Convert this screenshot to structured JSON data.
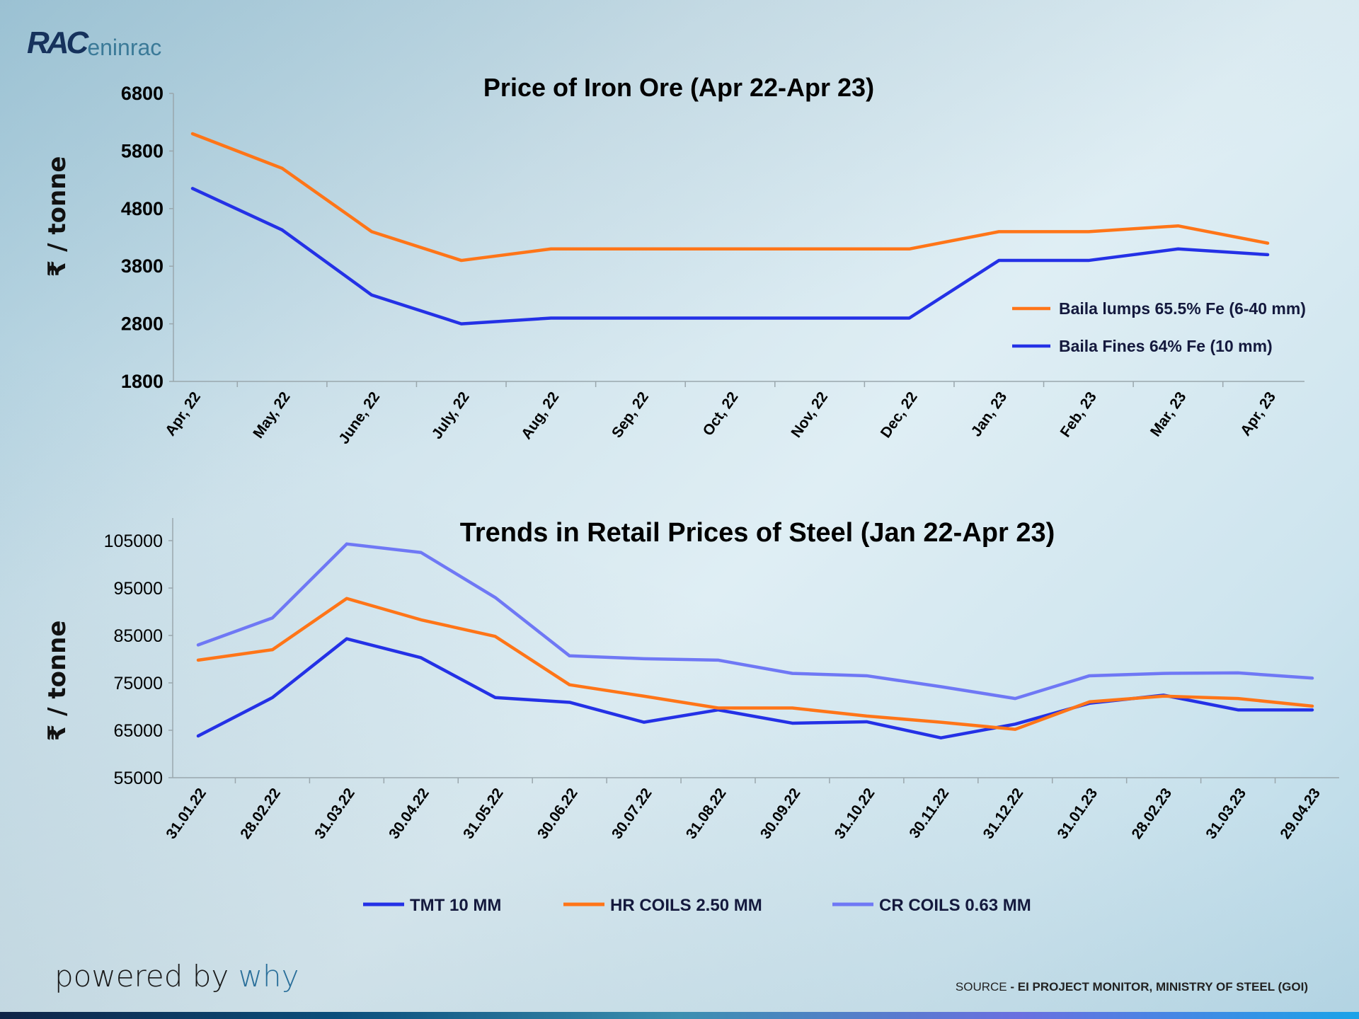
{
  "logo": {
    "mark": "RAC",
    "rest": "eninrac"
  },
  "footer": {
    "powered_prefix": "powered by ",
    "powered_brand": "why",
    "source_label": "SOURCE",
    "source_text": " - EI PROJECT MONITOR, MINISTRY OF STEEL (GOI)"
  },
  "chart_data": [
    {
      "type": "line",
      "title": "Price of Iron Ore (Apr 22-Apr 23)",
      "ylabel": "₹ / tonne",
      "xlabel": "",
      "ylim": [
        1800,
        6800
      ],
      "yticks": [
        "6800",
        "5800",
        "4800",
        "3800",
        "2800",
        "1800"
      ],
      "grid": false,
      "legend": "right",
      "categories": [
        "Apr, 22",
        "May, 22",
        "June, 22",
        "July, 22",
        "Aug, 22",
        "Sep, 22",
        "Oct, 22",
        "Nov, 22",
        "Dec, 22",
        "Jan, 23",
        "Feb, 23",
        "Mar, 23",
        "Apr, 23"
      ],
      "series": [
        {
          "name": "Baila lumps 65.5% Fe (6-40 mm)",
          "color": "#ff7518",
          "values": [
            6100,
            5500,
            4400,
            3900,
            4100,
            4100,
            4100,
            4100,
            4100,
            4400,
            4400,
            4500,
            4200
          ]
        },
        {
          "name": "Baila Fines 64% Fe (10 mm)",
          "color": "#2431e6",
          "values": [
            5150,
            4430,
            3300,
            2800,
            2900,
            2900,
            2900,
            2900,
            2900,
            3900,
            3900,
            4100,
            4000
          ]
        }
      ]
    },
    {
      "type": "line",
      "title": "Trends in Retail Prices of Steel (Jan 22-Apr 23)",
      "ylabel": "₹ / tonne",
      "xlabel": "",
      "ylim": [
        55000,
        110000
      ],
      "yticks": [
        "105000",
        "95000",
        "85000",
        "75000",
        "65000",
        "55000"
      ],
      "grid": false,
      "legend": "bottom",
      "categories": [
        "31.01.22",
        "28.02.22",
        "31.03.22",
        "30.04.22",
        "31.05.22",
        "30.06.22",
        "30.07.22",
        "31.08.22",
        "30.09.22",
        "31.10.22",
        "30.11.22",
        "31.12.22",
        "31.01.23",
        "28.02.23",
        "31.03.23",
        "29.04.23"
      ],
      "series": [
        {
          "name": "TMT 10 MM",
          "color": "#2431e6",
          "values": [
            63800,
            71900,
            84300,
            80300,
            71900,
            70900,
            66700,
            69300,
            66500,
            66800,
            63400,
            66300,
            70700,
            72400,
            69300,
            69300
          ]
        },
        {
          "name": "HR COILS 2.50 MM",
          "color": "#ff7518",
          "values": [
            79800,
            82000,
            92800,
            88300,
            84800,
            74600,
            72200,
            69700,
            69700,
            68000,
            66700,
            65200,
            71000,
            72200,
            71700,
            70100
          ]
        },
        {
          "name": "CR COILS 0.63 MM",
          "color": "#6f78f5",
          "values": [
            83000,
            88700,
            104300,
            102500,
            93000,
            80700,
            80100,
            79800,
            77000,
            76500,
            74200,
            71700,
            76500,
            77000,
            77100,
            76000
          ]
        }
      ]
    }
  ]
}
